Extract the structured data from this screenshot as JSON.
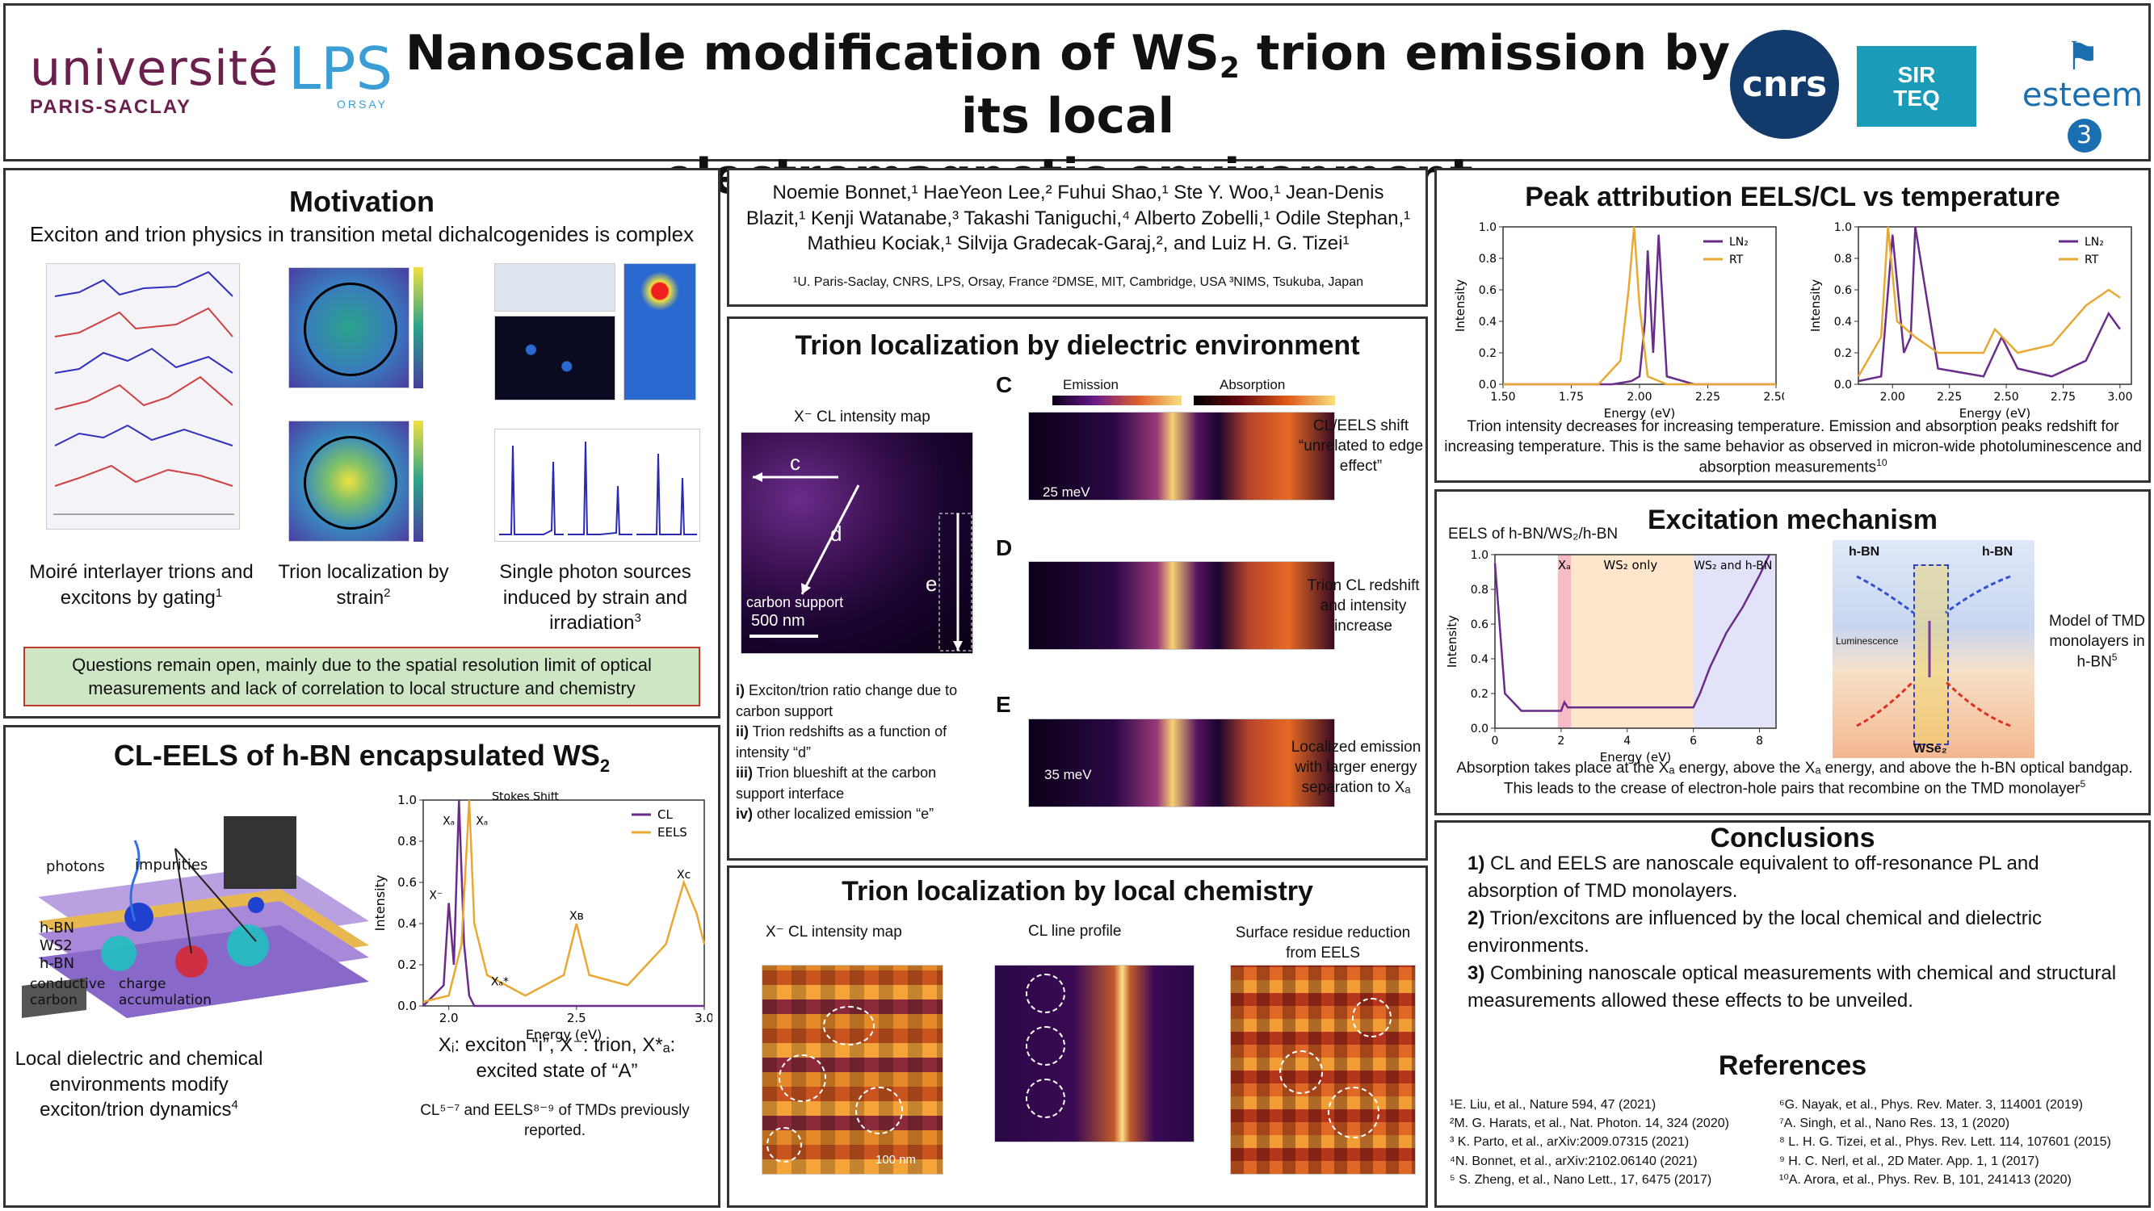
{
  "header": {
    "title_part1": "Nanoscale modification of WS",
    "title_sub": "2",
    "title_part2": " trion emission by its local",
    "title_line2": "electromagnetic environment",
    "logo_universite": "université",
    "logo_paris_saclay": "PARIS-SACLAY",
    "logo_lps": "LPS",
    "logo_orsay": "ORSAY",
    "logo_cnrs": "cnrs",
    "logo_sirteq_1": "SIR",
    "logo_sirteq_2": "TEQ",
    "logo_esteem": "esteem",
    "logo_esteem_num": "3"
  },
  "motivation": {
    "title": "Motivation",
    "subtitle": "Exciton and trion physics in transition metal dichalcogenides is complex",
    "cap1": "Moiré interlayer trions and excitons by gating",
    "cap1_ref": "1",
    "cap2": "Trion localization by strain",
    "cap2_ref": "2",
    "cap3": "Single photon sources induced by strain and irradiation",
    "cap3_ref": "3",
    "note": "Questions remain open, mainly due to the spatial resolution limit of optical measurements and lack of correlation to local structure and chemistry"
  },
  "authors": {
    "names": "Noemie Bonnet,¹ HaeYeon Lee,² Fuhui Shao,¹ Ste Y. Woo,¹ Jean-Denis Blazit,¹ Kenji Watanabe,³ Takashi Taniguchi,⁴ Alberto Zobelli,¹ Odile Stephan,¹ Mathieu Kociak,¹ Silvija Gradecak-Garaj,², and Luiz H. G. Tizei¹",
    "affiliations": "¹U. Paris-Saclay, CNRS, LPS, Orsay, France ²DMSE, MIT, Cambridge, USA ³NIMS, Tsukuba, Japan"
  },
  "cleels": {
    "title_part1": "CL-EELS of h-BN encapsulated WS",
    "title_sub": "2",
    "label_photons": "photons",
    "label_impurities": "impurities",
    "label_hbn_top": "h-BN",
    "label_ws2": "WS2",
    "label_hbn_bottom": "h-BN",
    "label_conductive": "conductive carbon",
    "label_charge": "charge accumulation",
    "caption": "Local dielectric and chemical environments modify exciton/trion dynamics",
    "caption_ref": "4",
    "xi_caption": "Xᵢ: exciton “i”, X⁻: trion, X*ₐ: excited state of “A”",
    "footnote": "CL⁵⁻⁷ and EELS⁸⁻⁹ of TMDs previously reported."
  },
  "dielectric": {
    "title": "Trion localization by dielectric environment",
    "map_title": "X⁻ CL intensity map",
    "carbon_support": "carbon support",
    "scalebar": "500 nm",
    "label_c": "c",
    "label_d": "d",
    "label_e": "e",
    "panel_C": "C",
    "panel_D": "D",
    "panel_E": "E",
    "emission_label": "Emission",
    "absorption_label": "Absorption",
    "shift_25": "25 meV",
    "shift_35": "35 meV",
    "note_C": "CL/EELS shift “unrelated to edge effect”",
    "note_D": "Trion CL redshift and intensity increase",
    "note_E": "Localized emission with larger energy separation to Xₐ",
    "list": [
      {
        "num": "i)",
        "text": "Exciton/trion ratio change due to carbon support"
      },
      {
        "num": "ii)",
        "text": "Trion redshifts as a function of intensity “d”"
      },
      {
        "num": "iii)",
        "text": "Trion blueshift at the carbon support interface"
      },
      {
        "num": "iv)",
        "text": "other localized emission “e”"
      }
    ]
  },
  "chemistry": {
    "title": "Trion localization by local chemistry",
    "map_title": "X⁻ CL intensity map",
    "line_title": "CL line profile",
    "residue_title": "Surface residue reduction from EELS",
    "scalebar": "100 nm"
  },
  "peak": {
    "title": "Peak attribution EELS/CL vs temperature",
    "text": "Trion intensity decreases for increasing temperature. Emission and absorption peaks redshift for increasing temperature. This is the same behavior as observed in micron-wide photoluminescence and absorption measurements",
    "text_ref": "10"
  },
  "excitation": {
    "title": "Excitation mechanism",
    "plot_title": "EELS of h-BN/WS₂/h-BN",
    "region_xa": "Xₐ",
    "region_ws2": "WS₂ only",
    "region_both": "WS₂ and h-BN",
    "model_text": "Model of TMD monolayers in h-BN",
    "model_ref": "5",
    "hbn_left": "h-BN",
    "hbn_right": "h-BN",
    "wse2": "WSe₂",
    "luminescence": "Luminescence",
    "text": "Absorption takes place at the Xₐ energy, above the Xₐ energy, and above the h-BN optical bandgap. This leads to the crease of electron-hole pairs that recombine on the TMD monolayer",
    "text_ref": "5"
  },
  "conclusions": {
    "title": "Conclusions",
    "items": [
      {
        "num": "1)",
        "text": "CL and EELS are nanoscale equivalent to off-resonance PL and absorption of TMD monolayers."
      },
      {
        "num": "2)",
        "text": "Trion/excitons are influenced by the local chemical and dielectric environments."
      },
      {
        "num": "3)",
        "text": "Combining nanoscale optical measurements with chemical and structural measurements allowed these effects to be unveiled."
      }
    ]
  },
  "references": {
    "title": "References",
    "left": [
      "¹E. Liu, et al., Nature 594, 47 (2021)",
      "²M. G. Harats, et al., Nat. Photon. 14, 324 (2020)",
      "³ K. Parto, et al., arXiv:2009.07315 (2021)",
      "⁴N. Bonnet, et al., arXiv:2102.06140 (2021)",
      "⁵ S. Zheng, et al., Nano Lett., 17, 6475 (2017)"
    ],
    "right": [
      "⁶G. Nayak, et al., Phys. Rev. Mater. 3, 114001 (2019)",
      "⁷A. Singh, et al., Nano Res. 13, 1 (2020)",
      "⁸ L. H. G. Tizei, et al., Phys. Rev. Lett. 114, 107601 (2015)",
      "⁹ H. C. Nerl, et al., 2D Mater. App. 1, 1 (2017)",
      "¹⁰A. Arora, et al., Phys. Rev. B, 101, 241413 (2020)"
    ]
  },
  "chart_data": [
    {
      "type": "line",
      "xlabel": "Energy (eV)",
      "ylabel": "Intensity",
      "xlim": [
        1.5,
        2.5
      ],
      "ylim": [
        0.0,
        1.0
      ],
      "xticks": [
        "1.50",
        "1.75",
        "2.00",
        "2.25",
        "2.50"
      ],
      "yticks": [
        "0.0",
        "0.2",
        "0.4",
        "0.6",
        "0.8",
        "1.0"
      ],
      "legend": "top-right",
      "series": [
        {
          "name": "LN₂",
          "color": "#6a2c8a",
          "x": [
            1.5,
            1.9,
            1.97,
            2.0,
            2.02,
            2.03,
            2.05,
            2.07,
            2.1,
            2.2,
            2.5
          ],
          "y": [
            0.0,
            0.0,
            0.02,
            0.05,
            0.4,
            0.85,
            0.2,
            0.95,
            0.05,
            0.0,
            0.0
          ]
        },
        {
          "name": "RT",
          "color": "#e8a834",
          "x": [
            1.5,
            1.85,
            1.93,
            1.96,
            1.98,
            2.0,
            2.03,
            2.1,
            2.5
          ],
          "y": [
            0.0,
            0.0,
            0.15,
            0.6,
            1.0,
            0.5,
            0.05,
            0.0,
            0.0
          ]
        }
      ]
    },
    {
      "type": "line",
      "xlabel": "Energy (eV)",
      "ylabel": "Intensity",
      "xlim": [
        1.85,
        3.05
      ],
      "ylim": [
        0.0,
        1.0
      ],
      "xticks": [
        "2.00",
        "2.25",
        "2.50",
        "2.75",
        "3.00"
      ],
      "yticks": [
        "0.0",
        "0.2",
        "0.4",
        "0.6",
        "0.8",
        "1.0"
      ],
      "legend": "top-right",
      "series": [
        {
          "name": "LN₂",
          "color": "#6a2c8a",
          "x": [
            1.85,
            1.95,
            2.0,
            2.05,
            2.08,
            2.1,
            2.2,
            2.4,
            2.48,
            2.55,
            2.7,
            2.85,
            2.95,
            3.0
          ],
          "y": [
            0.02,
            0.05,
            0.95,
            0.2,
            0.3,
            1.0,
            0.1,
            0.05,
            0.3,
            0.1,
            0.05,
            0.15,
            0.45,
            0.35
          ]
        },
        {
          "name": "RT",
          "color": "#e8a834",
          "x": [
            1.85,
            1.95,
            1.98,
            2.02,
            2.1,
            2.2,
            2.4,
            2.45,
            2.55,
            2.7,
            2.85,
            2.95,
            3.0
          ],
          "y": [
            0.05,
            0.3,
            1.0,
            0.4,
            0.3,
            0.2,
            0.2,
            0.35,
            0.2,
            0.25,
            0.5,
            0.6,
            0.55
          ]
        }
      ]
    },
    {
      "type": "line",
      "xlabel": "Energy (eV)",
      "ylabel": "Intensity",
      "xlim": [
        1.9,
        3.0
      ],
      "ylim": [
        0.0,
        1.0
      ],
      "xticks": [
        "2.0",
        "2.5",
        "3.0"
      ],
      "yticks": [
        "0.0",
        "0.2",
        "0.4",
        "0.6",
        "0.8",
        "1.0"
      ],
      "legend": "top-right",
      "annotations": [
        "Stokes Shift",
        "Xₐ",
        "Xₐ",
        "X⁻",
        "Xₐ*",
        "Xʙ",
        "Xᴄ"
      ],
      "series": [
        {
          "name": "CL",
          "color": "#6a2c8a",
          "x": [
            1.9,
            1.98,
            2.0,
            2.02,
            2.04,
            2.06,
            2.08,
            2.1,
            2.2,
            3.0
          ],
          "y": [
            0.0,
            0.1,
            0.5,
            0.2,
            1.0,
            0.3,
            0.05,
            0.0,
            0.0,
            0.0
          ]
        },
        {
          "name": "EELS",
          "color": "#e8a834",
          "x": [
            1.9,
            2.0,
            2.05,
            2.08,
            2.1,
            2.15,
            2.3,
            2.45,
            2.5,
            2.55,
            2.7,
            2.85,
            2.92,
            2.97,
            3.0
          ],
          "y": [
            0.02,
            0.05,
            0.3,
            1.0,
            0.4,
            0.15,
            0.05,
            0.15,
            0.4,
            0.15,
            0.1,
            0.3,
            0.6,
            0.45,
            0.3
          ]
        }
      ]
    },
    {
      "type": "line",
      "xlabel": "Energy (eV)",
      "ylabel": "Intensity",
      "xlim": [
        0,
        8.5
      ],
      "ylim": [
        0.0,
        1.0
      ],
      "xticks": [
        "0",
        "2",
        "4",
        "6",
        "8"
      ],
      "yticks": [
        "0.0",
        "0.2",
        "0.4",
        "0.6",
        "0.8",
        "1.0"
      ],
      "series": [
        {
          "name": "",
          "color": "#6a2c8a",
          "x": [
            0,
            0.3,
            0.8,
            1.5,
            2.0,
            2.1,
            2.2,
            3,
            4,
            5,
            6,
            6.2,
            6.5,
            7,
            7.5,
            8,
            8.3
          ],
          "y": [
            0.95,
            0.2,
            0.1,
            0.1,
            0.1,
            0.15,
            0.12,
            0.12,
            0.12,
            0.12,
            0.12,
            0.2,
            0.35,
            0.55,
            0.7,
            0.88,
            1.0
          ]
        }
      ]
    }
  ]
}
